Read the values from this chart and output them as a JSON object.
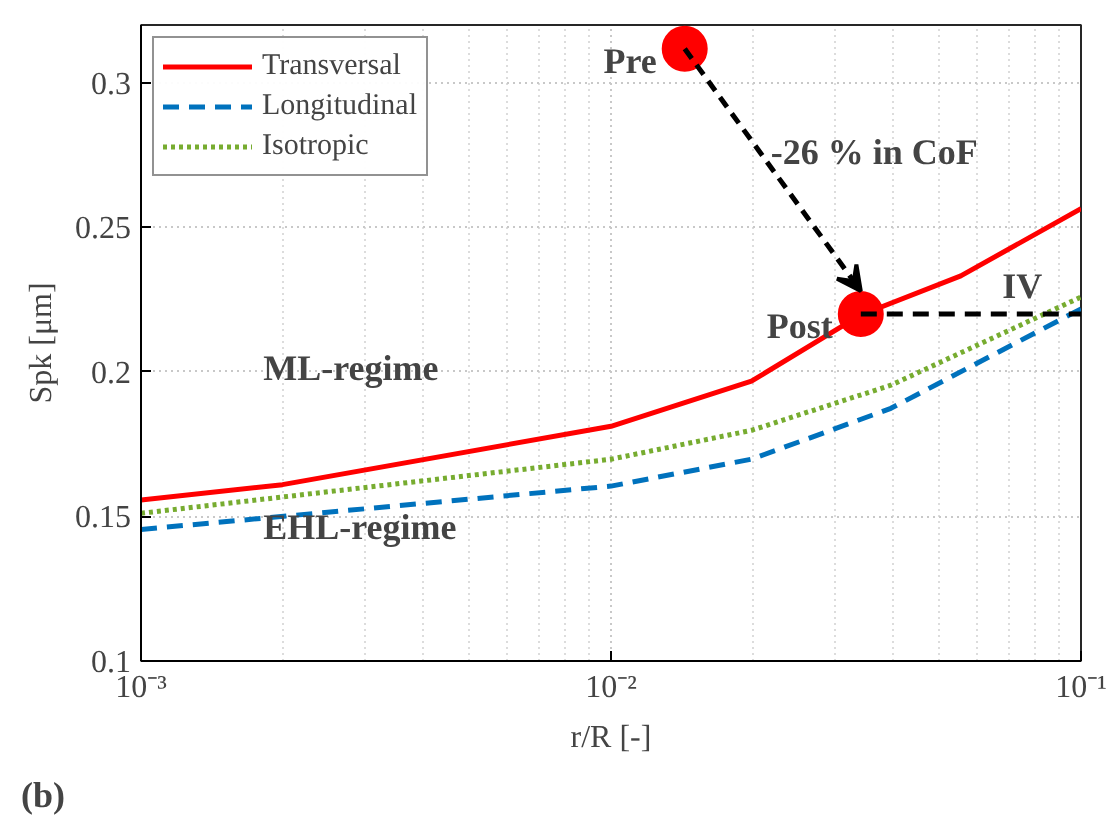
{
  "chart_data": {
    "type": "line",
    "xlabel": "r/R [-]",
    "ylabel": "Spk [μm]",
    "log": "x",
    "xlim": [
      0.001,
      0.1
    ],
    "ylim": [
      0.1,
      0.32
    ],
    "xticks": [
      {
        "value": 0.001,
        "label": "10⁻³"
      },
      {
        "value": 0.01,
        "label": "10⁻²"
      },
      {
        "value": 0.1,
        "label": "10⁻¹"
      }
    ],
    "yticks": [
      0.1,
      0.15,
      0.2,
      0.25,
      0.3
    ],
    "grid": true,
    "legend": "top left",
    "series": [
      {
        "name": "Transversal",
        "color": "#ff0000",
        "line_style": "solid",
        "x": [
          0.001,
          0.002,
          0.01,
          0.0199,
          0.034,
          0.0555,
          0.1
        ],
        "values": [
          0.1557,
          0.161,
          0.1812,
          0.1968,
          0.2197,
          0.2332,
          0.2565
        ]
      },
      {
        "name": "Longitudinal",
        "color": "#0072bd",
        "line_style": "dashed",
        "x": [
          0.001,
          0.01,
          0.0199,
          0.0394,
          0.1
        ],
        "values": [
          0.1455,
          0.1605,
          0.1698,
          0.1874,
          0.2218
        ]
      },
      {
        "name": "Isotropic",
        "color": "#77ac30",
        "line_style": "dotted",
        "x": [
          0.001,
          0.01,
          0.0199,
          0.0394,
          0.1
        ],
        "values": [
          0.1511,
          0.1698,
          0.1798,
          0.1954,
          0.2259
        ]
      },
      {
        "type": "scatter",
        "color": "#ff0000",
        "marker": "circle",
        "x": [
          0.01435,
          0.034
        ],
        "values": [
          0.3118,
          0.22
        ]
      },
      {
        "color": "#000000",
        "line_style": "dashed",
        "x": [
          0.034,
          0.1
        ],
        "values": [
          0.22,
          0.22
        ]
      }
    ],
    "annotations": [
      {
        "text": "Pre",
        "x": 0.01435,
        "y": 0.3118
      },
      {
        "text": "Post",
        "x": 0.034,
        "y": 0.22
      },
      {
        "text": "IV",
        "x": 0.075,
        "y": 0.22
      },
      "-26 % in CoF",
      "ML-regime",
      "EHL-regime",
      "(b)"
    ]
  }
}
